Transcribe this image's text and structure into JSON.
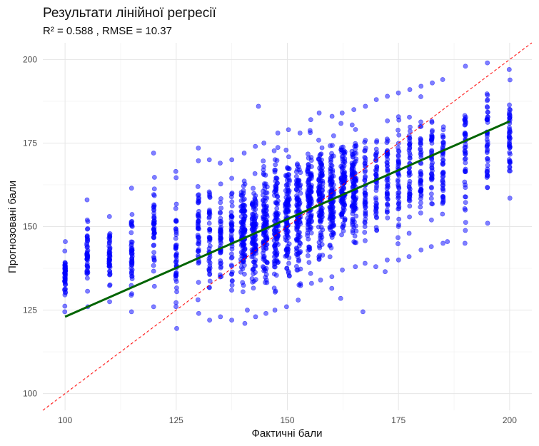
{
  "chart_data": {
    "type": "scatter",
    "title": "Результати лінійної регресії",
    "subtitle": "R² = 0.588 , RMSE = 10.37",
    "xlabel": "Фактичні бали",
    "ylabel": "Прогнозовані бали",
    "xlim": [
      95,
      205
    ],
    "ylim": [
      95,
      205
    ],
    "x_ticks": [
      "100",
      "125",
      "150",
      "175",
      "200"
    ],
    "y_ticks": [
      "100",
      "125",
      "150",
      "175",
      "200"
    ],
    "grid": true,
    "point_color": "#0000ff",
    "regression_line": {
      "color": "#006400",
      "x": [
        100,
        200
      ],
      "y": [
        123,
        181.5
      ]
    },
    "identity_line": {
      "color": "#ff0000",
      "style": "dashed",
      "x": [
        95,
        205
      ],
      "y": [
        95,
        205
      ]
    },
    "point_columns": [
      {
        "x": 100,
        "y_min": 124.5,
        "y_max": 145.5
      },
      {
        "x": 105,
        "y_min": 126,
        "y_max": 158
      },
      {
        "x": 110,
        "y_min": 127.5,
        "y_max": 153
      },
      {
        "x": 115,
        "y_min": 124.5,
        "y_max": 161.5
      },
      {
        "x": 120,
        "y_min": 126,
        "y_max": 172
      },
      {
        "x": 125,
        "y_min": 119.5,
        "y_max": 166.5
      },
      {
        "x": 130,
        "y_min": 124,
        "y_max": 173.5
      },
      {
        "x": 132.5,
        "y_min": 122,
        "y_max": 170
      },
      {
        "x": 135,
        "y_min": 123,
        "y_max": 169
      },
      {
        "x": 137.5,
        "y_min": 122,
        "y_max": 170
      },
      {
        "x": 140,
        "y_min": 121,
        "y_max": 172
      },
      {
        "x": 142.5,
        "y_min": 123,
        "y_max": 174
      },
      {
        "x": 145,
        "y_min": 124,
        "y_max": 175
      },
      {
        "x": 147.5,
        "y_min": 125,
        "y_max": 178
      },
      {
        "x": 150,
        "y_min": 126,
        "y_max": 179
      },
      {
        "x": 152.5,
        "y_min": 128,
        "y_max": 178
      },
      {
        "x": 155,
        "y_min": 133,
        "y_max": 182
      },
      {
        "x": 157.5,
        "y_min": 134,
        "y_max": 184
      },
      {
        "x": 160,
        "y_min": 135,
        "y_max": 183
      },
      {
        "x": 162.5,
        "y_min": 137,
        "y_max": 184
      },
      {
        "x": 165,
        "y_min": 138,
        "y_max": 185
      },
      {
        "x": 167.5,
        "y_min": 139,
        "y_max": 186
      },
      {
        "x": 170,
        "y_min": 138,
        "y_max": 188
      },
      {
        "x": 172.5,
        "y_min": 140,
        "y_max": 189
      },
      {
        "x": 175,
        "y_min": 140,
        "y_max": 190
      },
      {
        "x": 177.5,
        "y_min": 141,
        "y_max": 191
      },
      {
        "x": 180,
        "y_min": 143,
        "y_max": 192
      },
      {
        "x": 182.5,
        "y_min": 144,
        "y_max": 193
      },
      {
        "x": 185,
        "y_min": 145,
        "y_max": 194
      },
      {
        "x": 190,
        "y_min": 145,
        "y_max": 198
      },
      {
        "x": 195,
        "y_min": 151,
        "y_max": 199
      },
      {
        "x": 200,
        "y_min": 158.5,
        "y_max": 197
      }
    ],
    "outliers": [
      {
        "x": 143.5,
        "y": 186
      },
      {
        "x": 167,
        "y": 124.5
      },
      {
        "x": 162,
        "y": 128.5
      },
      {
        "x": 172,
        "y": 136.5
      },
      {
        "x": 186,
        "y": 145.5
      },
      {
        "x": 160,
        "y": 131.5
      },
      {
        "x": 141,
        "y": 125
      }
    ]
  }
}
